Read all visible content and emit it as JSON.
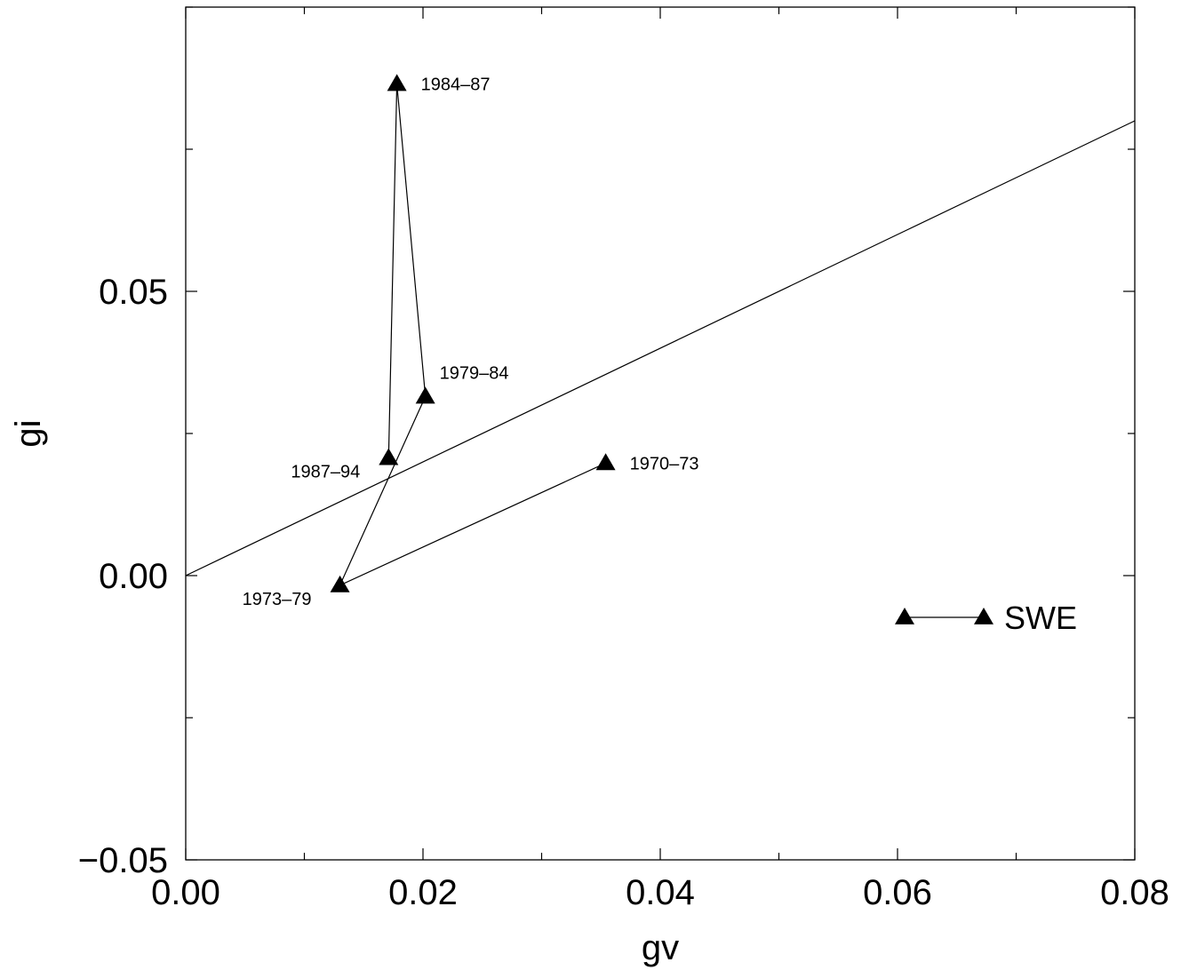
{
  "chart_data": {
    "type": "scatter",
    "title": "",
    "xlabel": "gv",
    "ylabel": "gi",
    "xlim": [
      0.0,
      0.08
    ],
    "ylim": [
      -0.05,
      0.1
    ],
    "x_ticks": [
      {
        "value": 0.0,
        "label": "0.00"
      },
      {
        "value": 0.02,
        "label": "0.02"
      },
      {
        "value": 0.04,
        "label": "0.04"
      },
      {
        "value": 0.06,
        "label": "0.06"
      },
      {
        "value": 0.08,
        "label": "0.08"
      }
    ],
    "y_ticks": [
      {
        "value": -0.05,
        "label": "−0.05"
      },
      {
        "value": 0.0,
        "label": "0.00"
      },
      {
        "value": 0.05,
        "label": "0.05"
      }
    ],
    "x_minor_step": 0.01,
    "y_minor_step": 0.025,
    "grid": false,
    "reference_line": {
      "x": [
        0.0,
        0.08
      ],
      "y": [
        0.0,
        0.08
      ]
    },
    "series": [
      {
        "connected": true,
        "marker": "filled-triangle",
        "points": [
          {
            "x": 0.0354,
            "y": 0.0198,
            "label": "1970–73",
            "label_side": "right"
          },
          {
            "x": 0.013,
            "y": -0.0017,
            "label": "1973–79",
            "label_side": "left-below"
          },
          {
            "x": 0.0202,
            "y": 0.0315,
            "label": "1979–84",
            "label_side": "right-above"
          },
          {
            "x": 0.0178,
            "y": 0.0865,
            "label": "1984–87",
            "label_side": "right"
          },
          {
            "x": 0.0171,
            "y": 0.0207,
            "label": "1987–94",
            "label_side": "left-below"
          }
        ]
      }
    ],
    "legend": {
      "position": "right",
      "label": "SWE",
      "marker": "filled-triangle"
    },
    "colors": {
      "line": "#000000",
      "marker": "#000000",
      "background": "#ffffff"
    }
  }
}
